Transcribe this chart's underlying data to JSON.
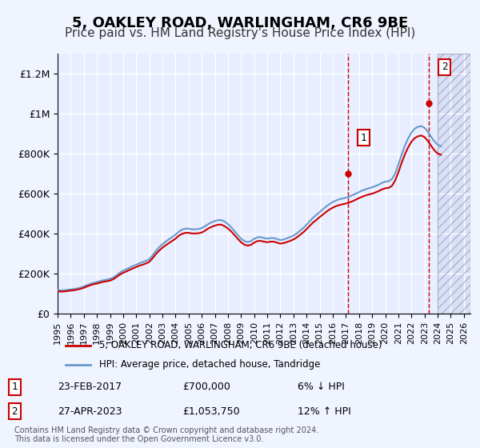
{
  "title": "5, OAKLEY ROAD, WARLINGHAM, CR6 9BE",
  "subtitle": "Price paid vs. HM Land Registry's House Price Index (HPI)",
  "title_fontsize": 13,
  "subtitle_fontsize": 11,
  "ylabel": "",
  "xlabel": "",
  "ylim": [
    0,
    1300000
  ],
  "xlim_start": 1995.0,
  "xlim_end": 2026.5,
  "yticks": [
    0,
    200000,
    400000,
    600000,
    800000,
    1000000,
    1200000
  ],
  "ytick_labels": [
    "£0",
    "£200K",
    "£400K",
    "£600K",
    "£800K",
    "£1M",
    "£1.2M"
  ],
  "background_color": "#f0f4ff",
  "plot_bg_color": "#e8eeff",
  "grid_color": "#ffffff",
  "hatch_color": "#c0c8e8",
  "sale1_x": 2017.15,
  "sale1_y": 700000,
  "sale2_x": 2023.33,
  "sale2_y": 1053750,
  "sale1_label": "1",
  "sale2_label": "2",
  "legend_line1": "5, OAKLEY ROAD, WARLINGHAM, CR6 9BE (detached house)",
  "legend_line2": "HPI: Average price, detached house, Tandridge",
  "annotation1_num": "1",
  "annotation1_date": "23-FEB-2017",
  "annotation1_price": "£700,000",
  "annotation1_hpi": "6% ↓ HPI",
  "annotation2_num": "2",
  "annotation2_date": "27-APR-2023",
  "annotation2_price": "£1,053,750",
  "annotation2_hpi": "12% ↑ HPI",
  "footer": "Contains HM Land Registry data © Crown copyright and database right 2024.\nThis data is licensed under the Open Government Licence v3.0.",
  "red_line_color": "#cc0000",
  "blue_line_color": "#6699cc",
  "hpi_years": [
    1995.0,
    1995.25,
    1995.5,
    1995.75,
    1996.0,
    1996.25,
    1996.5,
    1996.75,
    1997.0,
    1997.25,
    1997.5,
    1997.75,
    1998.0,
    1998.25,
    1998.5,
    1998.75,
    1999.0,
    1999.25,
    1999.5,
    1999.75,
    2000.0,
    2000.25,
    2000.5,
    2000.75,
    2001.0,
    2001.25,
    2001.5,
    2001.75,
    2002.0,
    2002.25,
    2002.5,
    2002.75,
    2003.0,
    2003.25,
    2003.5,
    2003.75,
    2004.0,
    2004.25,
    2004.5,
    2004.75,
    2005.0,
    2005.25,
    2005.5,
    2005.75,
    2006.0,
    2006.25,
    2006.5,
    2006.75,
    2007.0,
    2007.25,
    2007.5,
    2007.75,
    2008.0,
    2008.25,
    2008.5,
    2008.75,
    2009.0,
    2009.25,
    2009.5,
    2009.75,
    2010.0,
    2010.25,
    2010.5,
    2010.75,
    2011.0,
    2011.25,
    2011.5,
    2011.75,
    2012.0,
    2012.25,
    2012.5,
    2012.75,
    2013.0,
    2013.25,
    2013.5,
    2013.75,
    2014.0,
    2014.25,
    2014.5,
    2014.75,
    2015.0,
    2015.25,
    2015.5,
    2015.75,
    2016.0,
    2016.25,
    2016.5,
    2016.75,
    2017.0,
    2017.25,
    2017.5,
    2017.75,
    2018.0,
    2018.25,
    2018.5,
    2018.75,
    2019.0,
    2019.25,
    2019.5,
    2019.75,
    2020.0,
    2020.25,
    2020.5,
    2020.75,
    2021.0,
    2021.25,
    2021.5,
    2021.75,
    2022.0,
    2022.25,
    2022.5,
    2022.75,
    2023.0,
    2023.25,
    2023.5,
    2023.75,
    2024.0,
    2024.25
  ],
  "hpi_values": [
    118000,
    116000,
    117000,
    119000,
    121000,
    123000,
    126000,
    130000,
    136000,
    143000,
    149000,
    154000,
    158000,
    163000,
    167000,
    170000,
    174000,
    181000,
    192000,
    205000,
    215000,
    222000,
    230000,
    238000,
    245000,
    252000,
    258000,
    264000,
    272000,
    292000,
    313000,
    332000,
    347000,
    360000,
    372000,
    383000,
    395000,
    410000,
    420000,
    425000,
    425000,
    422000,
    422000,
    423000,
    428000,
    437000,
    448000,
    457000,
    463000,
    468000,
    468000,
    460000,
    448000,
    432000,
    413000,
    393000,
    375000,
    363000,
    358000,
    362000,
    374000,
    382000,
    383000,
    378000,
    375000,
    378000,
    378000,
    373000,
    368000,
    371000,
    377000,
    383000,
    390000,
    401000,
    415000,
    428000,
    445000,
    463000,
    480000,
    494000,
    508000,
    522000,
    536000,
    548000,
    558000,
    566000,
    572000,
    576000,
    580000,
    585000,
    592000,
    600000,
    608000,
    616000,
    622000,
    627000,
    632000,
    638000,
    645000,
    654000,
    660000,
    662000,
    672000,
    700000,
    745000,
    795000,
    840000,
    877000,
    906000,
    925000,
    935000,
    938000,
    930000,
    910000,
    885000,
    862000,
    845000,
    838000
  ],
  "red_years": [
    1995.0,
    1995.25,
    1995.5,
    1995.75,
    1996.0,
    1996.25,
    1996.5,
    1996.75,
    1997.0,
    1997.25,
    1997.5,
    1997.75,
    1998.0,
    1998.25,
    1998.5,
    1998.75,
    1999.0,
    1999.25,
    1999.5,
    1999.75,
    2000.0,
    2000.25,
    2000.5,
    2000.75,
    2001.0,
    2001.25,
    2001.5,
    2001.75,
    2002.0,
    2002.25,
    2002.5,
    2002.75,
    2003.0,
    2003.25,
    2003.5,
    2003.75,
    2004.0,
    2004.25,
    2004.5,
    2004.75,
    2005.0,
    2005.25,
    2005.5,
    2005.75,
    2006.0,
    2006.25,
    2006.5,
    2006.75,
    2007.0,
    2007.25,
    2007.5,
    2007.75,
    2008.0,
    2008.25,
    2008.5,
    2008.75,
    2009.0,
    2009.25,
    2009.5,
    2009.75,
    2010.0,
    2010.25,
    2010.5,
    2010.75,
    2011.0,
    2011.25,
    2011.5,
    2011.75,
    2012.0,
    2012.25,
    2012.5,
    2012.75,
    2013.0,
    2013.25,
    2013.5,
    2013.75,
    2014.0,
    2014.25,
    2014.5,
    2014.75,
    2015.0,
    2015.25,
    2015.5,
    2015.75,
    2016.0,
    2016.25,
    2016.5,
    2016.75,
    2017.0,
    2017.25,
    2017.5,
    2017.75,
    2018.0,
    2018.25,
    2018.5,
    2018.75,
    2019.0,
    2019.25,
    2019.5,
    2019.75,
    2020.0,
    2020.25,
    2020.5,
    2020.75,
    2021.0,
    2021.25,
    2021.5,
    2021.75,
    2022.0,
    2022.25,
    2022.5,
    2022.75,
    2023.0,
    2023.25,
    2023.5,
    2023.75,
    2024.0,
    2024.25
  ],
  "red_values": [
    112000,
    110000,
    111000,
    113000,
    115000,
    117000,
    120000,
    124000,
    129000,
    136000,
    142000,
    147000,
    150000,
    155000,
    159000,
    162000,
    165000,
    172000,
    183000,
    195000,
    204000,
    211000,
    219000,
    226000,
    233000,
    240000,
    245000,
    251000,
    259000,
    277000,
    298000,
    315000,
    330000,
    342000,
    353000,
    364000,
    375000,
    390000,
    399000,
    404000,
    404000,
    401000,
    401000,
    402000,
    406000,
    415000,
    426000,
    434000,
    440000,
    445000,
    445000,
    437000,
    426000,
    411000,
    393000,
    374000,
    357000,
    345000,
    340000,
    344000,
    355000,
    363000,
    364000,
    360000,
    357000,
    360000,
    360000,
    355000,
    350000,
    353000,
    358000,
    364000,
    371000,
    381000,
    394000,
    407000,
    423000,
    440000,
    456000,
    469000,
    483000,
    496000,
    509000,
    521000,
    530000,
    538000,
    543000,
    547000,
    551000,
    556000,
    562000,
    570000,
    578000,
    585000,
    591000,
    596000,
    600000,
    606000,
    613000,
    621000,
    627000,
    629000,
    638000,
    665000,
    706000,
    754000,
    797000,
    832000,
    860000,
    878000,
    887000,
    891000,
    883000,
    864000,
    840000,
    817000,
    801000,
    795000
  ],
  "xtick_years": [
    1995,
    1996,
    1997,
    1998,
    1999,
    2000,
    2001,
    2002,
    2003,
    2004,
    2005,
    2006,
    2007,
    2008,
    2009,
    2010,
    2011,
    2012,
    2013,
    2014,
    2015,
    2016,
    2017,
    2018,
    2019,
    2020,
    2021,
    2022,
    2023,
    2024,
    2025,
    2026
  ]
}
